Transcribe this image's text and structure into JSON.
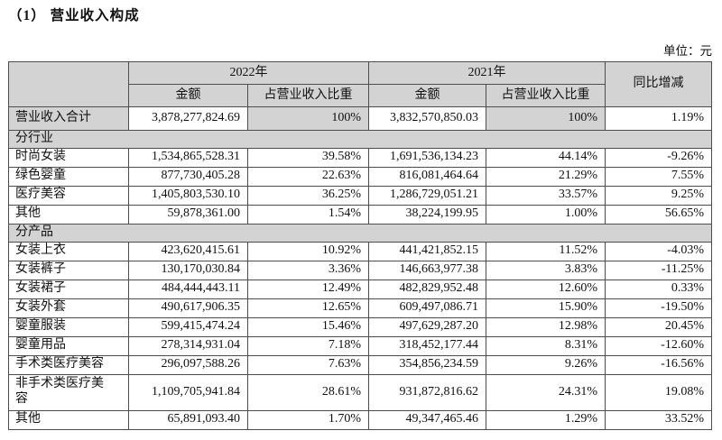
{
  "page": {
    "title": "（1） 营业收入构成",
    "unit_label": "单位：元"
  },
  "colors": {
    "header_fill": "#d3d3d3",
    "table_border": "#4d4d4d"
  },
  "table": {
    "header": {
      "year_2022": "2022年",
      "year_2021": "2021年",
      "yoy": "同比增减",
      "amount": "金额",
      "ratio": "占营业收入比重"
    },
    "rows": [
      {
        "type": "total",
        "label": "营业收入合计",
        "values": [
          "3,878,277,824.69",
          "100%",
          "3,832,570,850.03",
          "100%",
          "1.19%"
        ]
      },
      {
        "type": "section",
        "label": "分行业"
      },
      {
        "type": "data",
        "label": "时尚女装",
        "values": [
          "1,534,865,528.31",
          "39.58%",
          "1,691,536,134.23",
          "44.14%",
          "-9.26%"
        ]
      },
      {
        "type": "data",
        "label": "绿色婴童",
        "values": [
          "877,730,405.28",
          "22.63%",
          "816,081,464.64",
          "21.29%",
          "7.55%"
        ]
      },
      {
        "type": "data",
        "label": "医疗美容",
        "values": [
          "1,405,803,530.10",
          "36.25%",
          "1,286,729,051.21",
          "33.57%",
          "9.25%"
        ]
      },
      {
        "type": "data",
        "label": "其他",
        "values": [
          "59,878,361.00",
          "1.54%",
          "38,224,199.95",
          "1.00%",
          "56.65%"
        ]
      },
      {
        "type": "section",
        "label": "分产品"
      },
      {
        "type": "data",
        "label": "女装上衣",
        "values": [
          "423,620,415.61",
          "10.92%",
          "441,421,852.15",
          "11.52%",
          "-4.03%"
        ]
      },
      {
        "type": "data",
        "label": "女装裤子",
        "values": [
          "130,170,030.84",
          "3.36%",
          "146,663,977.38",
          "3.83%",
          "-11.25%"
        ]
      },
      {
        "type": "data",
        "label": "女装裙子",
        "values": [
          "484,444,443.11",
          "12.49%",
          "482,829,952.48",
          "12.60%",
          "0.33%"
        ]
      },
      {
        "type": "data",
        "label": "女装外套",
        "values": [
          "490,617,906.35",
          "12.65%",
          "609,497,086.71",
          "15.90%",
          "-19.50%"
        ]
      },
      {
        "type": "data",
        "label": "婴童服装",
        "values": [
          "599,415,474.24",
          "15.46%",
          "497,629,287.20",
          "12.98%",
          "20.45%"
        ]
      },
      {
        "type": "data",
        "label": "婴童用品",
        "values": [
          "278,314,931.04",
          "7.18%",
          "318,452,177.44",
          "8.31%",
          "-12.60%"
        ]
      },
      {
        "type": "data",
        "label": "手术类医疗美容",
        "values": [
          "296,097,588.26",
          "7.63%",
          "354,856,234.59",
          "9.26%",
          "-16.56%"
        ]
      },
      {
        "type": "data",
        "label": "非手术类医疗美容",
        "values": [
          "1,109,705,941.84",
          "28.61%",
          "931,872,816.62",
          "24.31%",
          "19.08%"
        ]
      },
      {
        "type": "data",
        "label": "其他",
        "values": [
          "65,891,093.40",
          "1.70%",
          "49,347,465.46",
          "1.29%",
          "33.52%"
        ]
      }
    ]
  }
}
